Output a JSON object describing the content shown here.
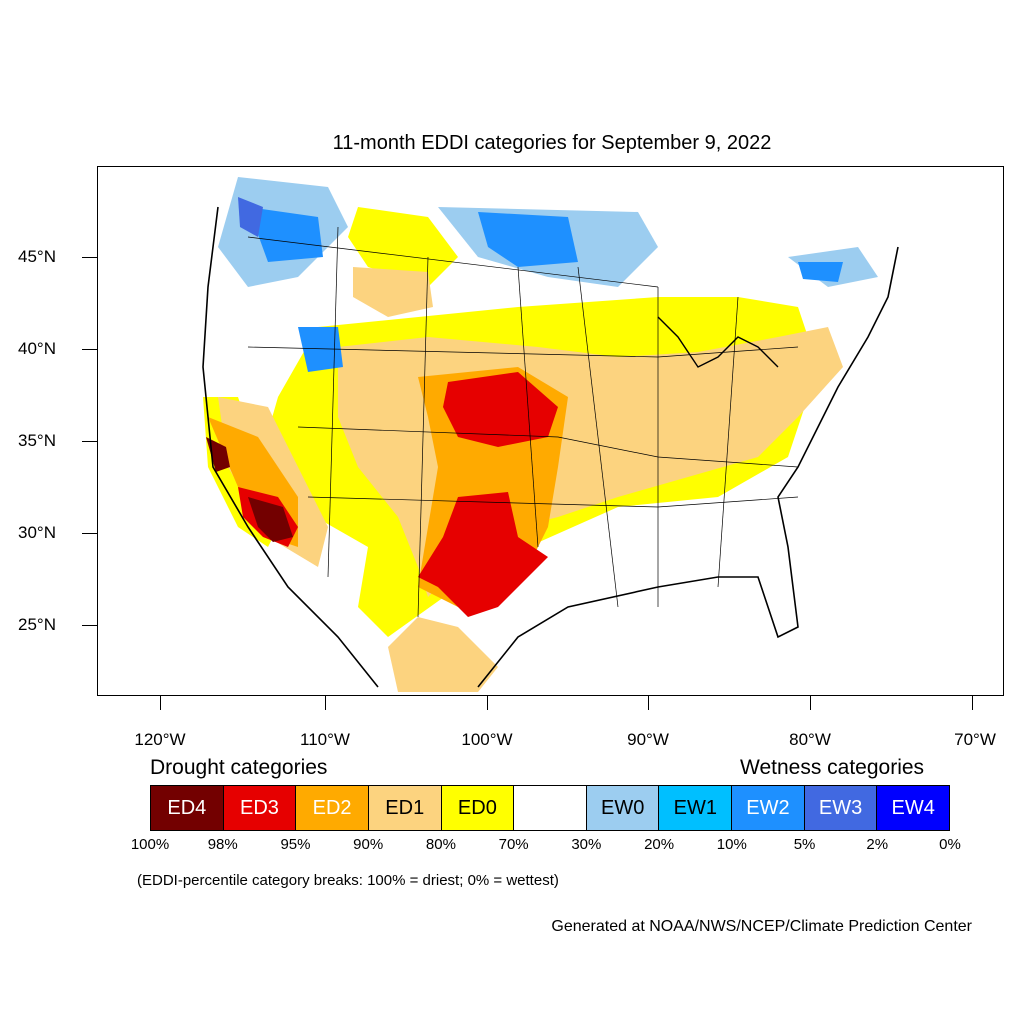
{
  "title": "11-month EDDI categories for September 9, 2022",
  "axes": {
    "lat_labels": [
      "45°N",
      "40°N",
      "35°N",
      "30°N",
      "25°N"
    ],
    "lon_labels": [
      "120°W",
      "110°W",
      "100°W",
      "90°W",
      "80°W",
      "70°W"
    ]
  },
  "legend": {
    "drought_heading": "Drought categories",
    "wetness_heading": "Wetness categories",
    "categories": [
      {
        "label": "ED4",
        "color": "#730000",
        "text_color": "#ffffff"
      },
      {
        "label": "ED3",
        "color": "#e60000",
        "text_color": "#ffffff"
      },
      {
        "label": "ED2",
        "color": "#ffaa00",
        "text_color": "#ffffff"
      },
      {
        "label": "ED1",
        "color": "#fcd37f",
        "text_color": "#000000"
      },
      {
        "label": "ED0",
        "color": "#ffff00",
        "text_color": "#000000"
      },
      {
        "label": "",
        "color": "#ffffff",
        "text_color": "#000000"
      },
      {
        "label": "EW0",
        "color": "#9ccdf0",
        "text_color": "#000000"
      },
      {
        "label": "EW1",
        "color": "#00bfff",
        "text_color": "#000000"
      },
      {
        "label": "EW2",
        "color": "#1e90ff",
        "text_color": "#ffffff"
      },
      {
        "label": "EW3",
        "color": "#4169e1",
        "text_color": "#ffffff"
      },
      {
        "label": "EW4",
        "color": "#0000ff",
        "text_color": "#ffffff"
      }
    ],
    "breaks": [
      "100%",
      "98%",
      "95%",
      "90%",
      "80%",
      "70%",
      "30%",
      "20%",
      "10%",
      "5%",
      "2%",
      "0%"
    ]
  },
  "note": "(EDDI-percentile category breaks: 100% = driest; 0% = wettest)",
  "credit": "Generated at NOAA/NWS/NCEP/Climate Prediction Center"
}
